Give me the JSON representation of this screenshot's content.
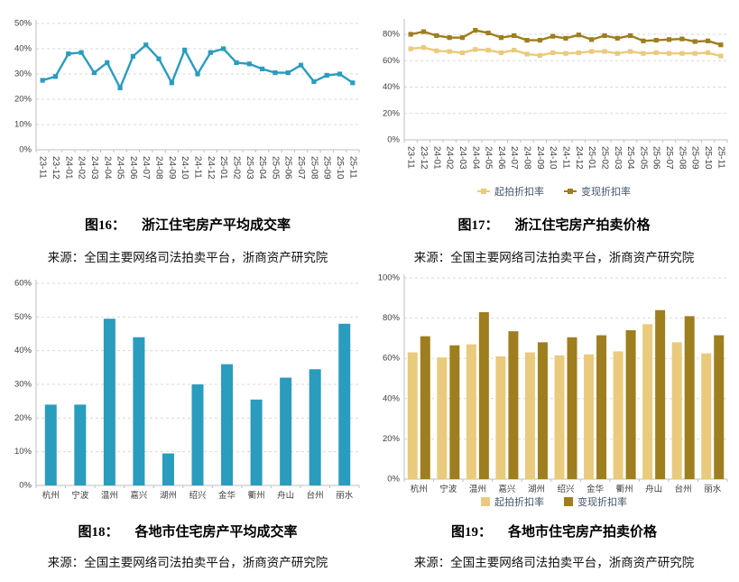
{
  "colors": {
    "teal": "#2A9CBE",
    "light_gold": "#EACA7C",
    "dark_gold": "#9E7E1E",
    "axis_text": "#404040",
    "legend_text": "#44546A",
    "grid": "#D9D9D9",
    "axis_line": "#BFBFBF",
    "caption_text": "#000000"
  },
  "figures": [
    {
      "label": "图16：",
      "title": "浙江住宅房产平均成交率",
      "source": "来源：全国主要网络司法拍卖平台，浙商资产研究院"
    },
    {
      "label": "图17：",
      "title": "浙江住宅房产拍卖价格",
      "source": "来源：全国主要网络司法拍卖平台，浙商资产研究院"
    },
    {
      "label": "图18：",
      "title": "各地市住宅房产平均成交率",
      "source": "来源：全国主要网络司法拍卖平台，浙商资产研究院"
    },
    {
      "label": "图19：",
      "title": "各地市住宅房产拍卖价格",
      "source": "来源：全国主要网络司法拍卖平台，浙商资产研究院"
    }
  ],
  "chart_data": [
    {
      "type": "line",
      "title": "浙江住宅房产平均成交率",
      "x": [
        "23-11",
        "23-12",
        "24-01",
        "24-02",
        "24-03",
        "24-04",
        "24-05",
        "24-06",
        "24-07",
        "24-08",
        "24-09",
        "24-10",
        "24-11",
        "24-12",
        "25-01",
        "25-02",
        "25-03",
        "25-04",
        "25-05",
        "25-06",
        "25-07",
        "25-08",
        "25-09",
        "25-10",
        "25-11"
      ],
      "series": [
        {
          "color": "#2A9CBE",
          "values": [
            27.5,
            29,
            38,
            38.5,
            30.5,
            34.5,
            24.5,
            37,
            41.5,
            36,
            26.5,
            39.5,
            30,
            38.5,
            40,
            34.5,
            34,
            32,
            30.5,
            30.5,
            33.5,
            27,
            29.5,
            30,
            26.5
          ]
        }
      ],
      "ylim": [
        0,
        50
      ],
      "yticks": [
        0,
        10,
        20,
        30,
        40,
        50
      ],
      "ytick_suffix": "%",
      "grid": true,
      "legend": "none"
    },
    {
      "type": "line",
      "title": "浙江住宅房产拍卖价格",
      "x": [
        "23-11",
        "23-12",
        "24-01",
        "24-02",
        "24-03",
        "24-04",
        "24-05",
        "24-06",
        "24-07",
        "24-08",
        "24-09",
        "24-10",
        "24-11",
        "24-12",
        "25-01",
        "25-02",
        "25-03",
        "25-04",
        "25-05",
        "25-06",
        "25-07",
        "25-08",
        "25-09",
        "25-10",
        "25-11"
      ],
      "series": [
        {
          "name": "起拍折扣率",
          "color": "#EACA7C",
          "values": [
            69,
            70,
            67.5,
            67,
            66,
            68.5,
            68,
            66,
            68,
            65,
            64,
            66,
            65.5,
            66,
            67,
            67,
            65.5,
            67,
            65.5,
            66,
            65.5,
            65.5,
            65.5,
            66,
            63.5
          ]
        },
        {
          "name": "变现折扣率",
          "color": "#9E7E1E",
          "values": [
            80,
            82,
            79,
            77.5,
            77.5,
            83,
            81,
            77.5,
            79,
            75.5,
            75.5,
            78.5,
            77,
            79.5,
            76,
            79,
            77,
            79,
            75,
            75.5,
            76,
            76.5,
            74.5,
            75,
            72
          ]
        }
      ],
      "ylim": [
        0,
        90
      ],
      "yticks": [
        0,
        20,
        40,
        60,
        80
      ],
      "ytick_suffix": "%",
      "grid": true,
      "legend": "bottom"
    },
    {
      "type": "bar",
      "title": "各地市住宅房产平均成交率",
      "categories": [
        "杭州",
        "宁波",
        "温州",
        "嘉兴",
        "湖州",
        "绍兴",
        "金华",
        "衢州",
        "舟山",
        "台州",
        "丽水"
      ],
      "series": [
        {
          "color": "#2A9CBE",
          "values": [
            24,
            24,
            49.5,
            44,
            9.5,
            30,
            36,
            25.5,
            32,
            34.5,
            48
          ]
        }
      ],
      "ylim": [
        0,
        60
      ],
      "yticks": [
        0,
        10,
        20,
        30,
        40,
        50,
        60
      ],
      "ytick_suffix": "%",
      "grid": true,
      "legend": "none"
    },
    {
      "type": "bar",
      "title": "各地市住宅房产拍卖价格",
      "categories": [
        "杭州",
        "宁波",
        "温州",
        "嘉兴",
        "湖州",
        "绍兴",
        "金华",
        "衢州",
        "舟山",
        "台州",
        "丽水"
      ],
      "series": [
        {
          "name": "起拍折扣率",
          "color": "#EACA7C",
          "values": [
            63,
            60.5,
            67,
            61,
            63,
            61.5,
            62,
            63.5,
            77,
            68,
            62.5
          ]
        },
        {
          "name": "变现折扣率",
          "color": "#9E7E1E",
          "values": [
            71,
            66.5,
            83,
            73.5,
            68,
            70.5,
            71.5,
            74,
            84,
            81,
            71.5
          ]
        }
      ],
      "ylim": [
        0,
        100
      ],
      "yticks": [
        0,
        20,
        40,
        60,
        80,
        100
      ],
      "ytick_suffix": "%",
      "grid": true,
      "legend": "bottom"
    }
  ]
}
